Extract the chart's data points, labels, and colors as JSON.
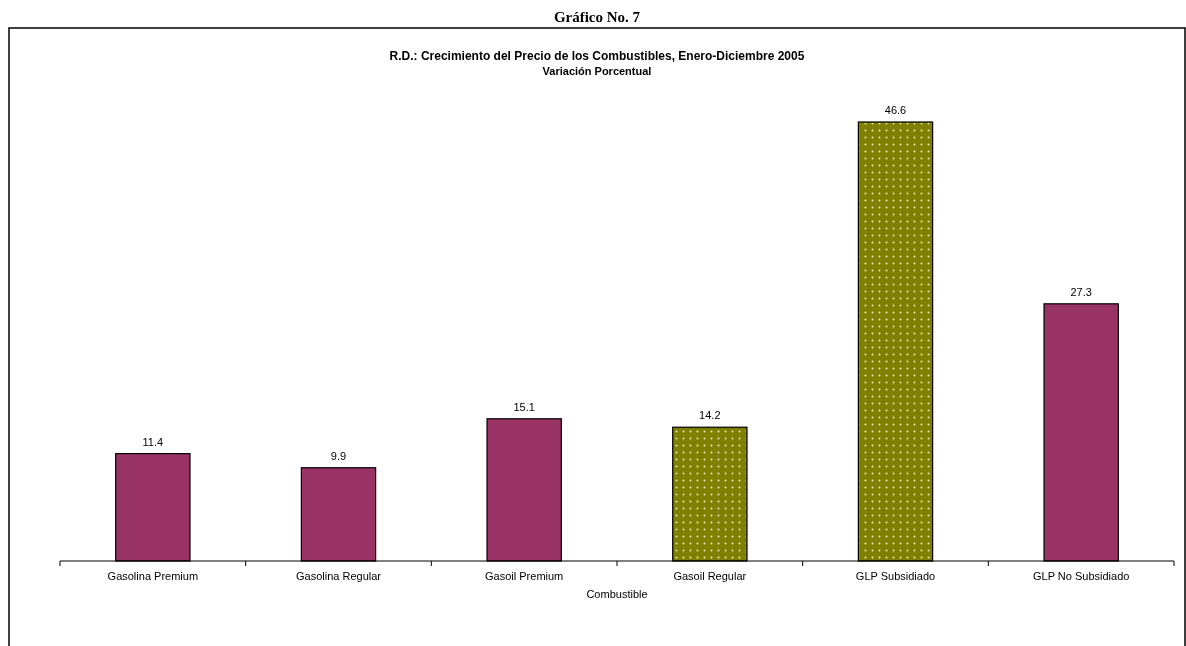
{
  "chart_data": {
    "type": "bar",
    "title": "R.D.: Crecimiento del Precio de los Combustibles, Enero-Diciembre 2005",
    "subtitle": "Variación Porcentual",
    "xlabel": "Combustible",
    "annotations": [
      "Gráfico No. 7"
    ],
    "categories": [
      "Gasolina Premium",
      "Gasolina Regular",
      "Gasoil Premium",
      "Gasoil Regular",
      "GLP Subsidiado",
      "GLP No Subsidiado"
    ],
    "values": [
      11.4,
      9.9,
      15.1,
      14.2,
      46.6,
      27.3
    ],
    "colors": [
      "#993366",
      "#993366",
      "#993366",
      "#808000",
      "#808000",
      "#993366"
    ],
    "data_labels": true
  }
}
